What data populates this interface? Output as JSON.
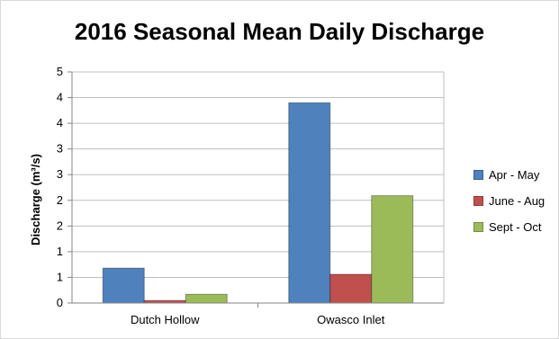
{
  "chart_data": {
    "type": "bar",
    "title": "2016 Seasonal Mean Daily Discharge",
    "xlabel": "",
    "ylabel": "Discharge (m³/s)",
    "categories": [
      "Dutch Hollow",
      "Owasco Inlet"
    ],
    "y_tick_labels": [
      "0",
      "1",
      "1",
      "2",
      "2",
      "3",
      "3",
      "4",
      "4",
      "5"
    ],
    "ylim": [
      0,
      4.5
    ],
    "grid": true,
    "legend_position": "right",
    "series": [
      {
        "name": "Apr - May",
        "color": "#4f81bd",
        "values": [
          0.68,
          3.9
        ]
      },
      {
        "name": "June - Aug",
        "color": "#c0504d",
        "values": [
          0.05,
          0.56
        ]
      },
      {
        "name": "Sept - Oct",
        "color": "#9bbb59",
        "values": [
          0.17,
          2.09
        ]
      }
    ]
  }
}
